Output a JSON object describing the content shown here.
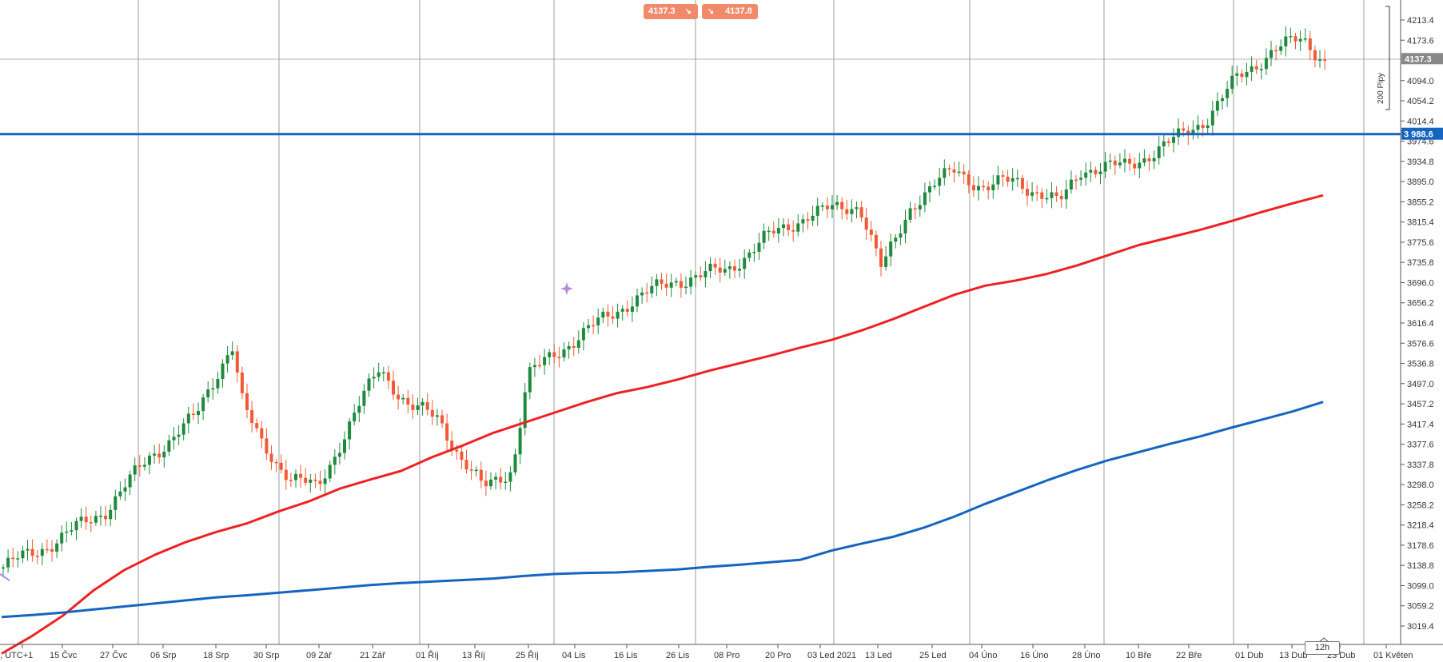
{
  "toolbar": {
    "sell_price": "4137.3",
    "buy_price": "4137.8",
    "sell_arrow": "↘",
    "buy_arrow": "↘"
  },
  "timeframe": "12h",
  "pips_label": "200 Pipy",
  "markers": {
    "current_price": "4137.3",
    "horizontal_line": "3 988.6"
  },
  "colors": {
    "bull": "#1e8a3e",
    "bear": "#f05a35",
    "ma_red": "#ee2222",
    "ma_blue": "#1565c0",
    "hline": "#1565c0",
    "price_badge": "#888888",
    "trade_btn": "#f08a6b"
  },
  "chart_data": {
    "type": "candlestick",
    "y_ticks": [
      "4213.4",
      "4173.6",
      "4094.0",
      "4054.2",
      "4014.4",
      "3974.6",
      "3934.8",
      "3895.0",
      "3855.2",
      "3815.4",
      "3775.6",
      "3735.8",
      "3696.0",
      "3656.2",
      "3616.4",
      "3576.6",
      "3536.8",
      "3497.0",
      "3457.2",
      "3417.4",
      "3377.6",
      "3337.8",
      "3298.0",
      "3258.2",
      "3218.4",
      "3178.6",
      "3138.8",
      "3099.0",
      "3059.2",
      "3019.4"
    ],
    "ylim": [
      2988,
      4232
    ],
    "x_labels": [
      ", UTC+1",
      "15 Čvc",
      "27 Čvc",
      "06 Srp",
      "18 Srp",
      "30 Srp",
      "09 Zář",
      "21 Zář",
      "01 Říj",
      "13 Říj",
      "25 Říj",
      "04 Lis",
      "16 Lis",
      "26 Lis",
      "08 Pro",
      "20 Pro",
      "03 Led 2021",
      "13 Led",
      "25 Led",
      "04 Úno",
      "16 Úno",
      "28 Úno",
      "10 Bře",
      "22 Bře",
      "01 Dub",
      "13 Dub",
      "23 Dub",
      "01 Květen"
    ],
    "horizontal_line": 3988.6,
    "current_price": 4137.3,
    "series": [
      {
        "name": "",
        "kind": "ma",
        "color": "#ee2222",
        "points": [
          [
            0,
            2965
          ],
          [
            20,
            3000
          ],
          [
            40,
            3040
          ],
          [
            60,
            3090
          ],
          [
            80,
            3130
          ],
          [
            100,
            3160
          ],
          [
            120,
            3185
          ],
          [
            140,
            3205
          ],
          [
            160,
            3222
          ],
          [
            180,
            3245
          ],
          [
            200,
            3265
          ],
          [
            220,
            3290
          ],
          [
            240,
            3308
          ],
          [
            260,
            3325
          ],
          [
            280,
            3352
          ],
          [
            300,
            3375
          ],
          [
            320,
            3400
          ],
          [
            340,
            3420
          ],
          [
            360,
            3440
          ],
          [
            380,
            3460
          ],
          [
            400,
            3478
          ],
          [
            420,
            3490
          ],
          [
            440,
            3505
          ],
          [
            460,
            3522
          ],
          [
            480,
            3537
          ],
          [
            500,
            3552
          ],
          [
            520,
            3568
          ],
          [
            540,
            3583
          ],
          [
            560,
            3602
          ],
          [
            580,
            3624
          ],
          [
            600,
            3648
          ],
          [
            620,
            3672
          ],
          [
            640,
            3690
          ],
          [
            660,
            3700
          ],
          [
            680,
            3713
          ],
          [
            700,
            3730
          ],
          [
            720,
            3750
          ],
          [
            740,
            3770
          ],
          [
            760,
            3785
          ],
          [
            780,
            3800
          ],
          [
            800,
            3817
          ],
          [
            820,
            3835
          ],
          [
            840,
            3852
          ],
          [
            860,
            3868
          ]
        ]
      },
      {
        "name": "",
        "kind": "ma",
        "color": "#1565c0",
        "points": [
          [
            0,
            3037
          ],
          [
            20,
            3041
          ],
          [
            40,
            3046
          ],
          [
            60,
            3052
          ],
          [
            80,
            3058
          ],
          [
            100,
            3064
          ],
          [
            120,
            3070
          ],
          [
            140,
            3076
          ],
          [
            160,
            3080
          ],
          [
            180,
            3085
          ],
          [
            200,
            3090
          ],
          [
            220,
            3095
          ],
          [
            240,
            3100
          ],
          [
            260,
            3104
          ],
          [
            280,
            3107
          ],
          [
            300,
            3110
          ],
          [
            320,
            3113
          ],
          [
            340,
            3118
          ],
          [
            360,
            3122
          ],
          [
            380,
            3124
          ],
          [
            400,
            3125
          ],
          [
            420,
            3128
          ],
          [
            440,
            3131
          ],
          [
            460,
            3136
          ],
          [
            480,
            3140
          ],
          [
            500,
            3145
          ],
          [
            520,
            3150
          ],
          [
            540,
            3168
          ],
          [
            560,
            3182
          ],
          [
            580,
            3195
          ],
          [
            600,
            3213
          ],
          [
            620,
            3235
          ],
          [
            640,
            3260
          ],
          [
            660,
            3283
          ],
          [
            680,
            3306
          ],
          [
            700,
            3327
          ],
          [
            720,
            3346
          ],
          [
            740,
            3362
          ],
          [
            760,
            3378
          ],
          [
            780,
            3393
          ],
          [
            800,
            3410
          ],
          [
            820,
            3426
          ],
          [
            840,
            3442
          ],
          [
            860,
            3461
          ]
        ]
      }
    ],
    "candles_count": 272,
    "last_index": 270
  }
}
